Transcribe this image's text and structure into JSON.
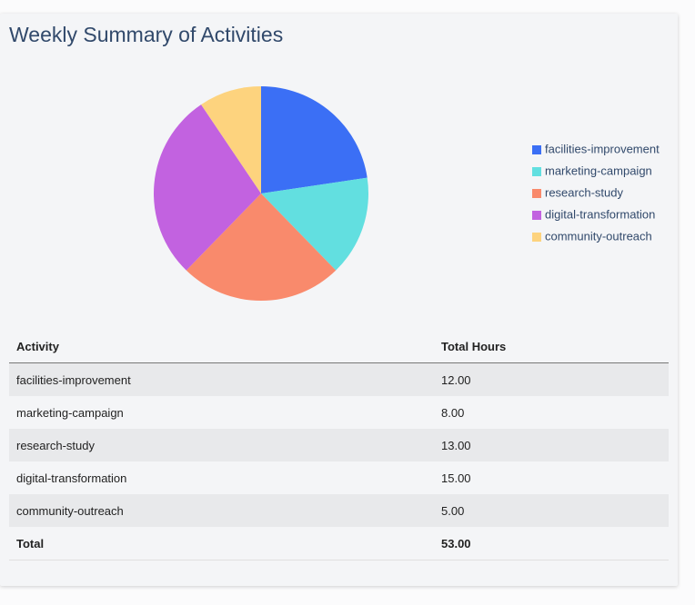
{
  "chart_data": {
    "type": "pie",
    "title": "Weekly Summary of Activities",
    "categories": [
      "facilities-improvement",
      "marketing-campaign",
      "research-study",
      "digital-transformation",
      "community-outreach"
    ],
    "values": [
      12,
      8,
      13,
      15,
      5
    ],
    "colors": [
      "#3b6ff5",
      "#62dfe0",
      "#f98a6c",
      "#c262e0",
      "#fdd37e"
    ],
    "legend": "right"
  },
  "table": {
    "header": [
      "Activity",
      "Total Hours"
    ],
    "rows": [
      [
        "facilities-improvement",
        "12.00"
      ],
      [
        "marketing-campaign",
        "8.00"
      ],
      [
        "research-study",
        "13.00"
      ],
      [
        "digital-transformation",
        "15.00"
      ],
      [
        "community-outreach",
        "5.00"
      ]
    ],
    "total": [
      "Total",
      "53.00"
    ]
  }
}
